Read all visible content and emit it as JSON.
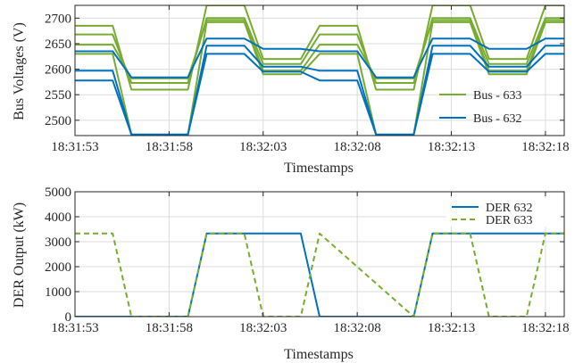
{
  "colors": {
    "green": "#77AC30",
    "blue": "#0072BD",
    "grid": "#dcdcdc",
    "axis": "#262626",
    "background": "#ffffff"
  },
  "chart_data": [
    {
      "type": "line",
      "xlabel": "Timestamps",
      "ylabel": "Bus Voltages (V)",
      "x_ticks": [
        "18:31:53",
        "18:31:58",
        "18:32:03",
        "18:32:08",
        "18:32:13",
        "18:32:18"
      ],
      "xlim": [
        "18:31:53",
        "18:32:19"
      ],
      "yticks": [
        2500,
        2550,
        2600,
        2650,
        2700
      ],
      "ylim": [
        2470,
        2725
      ],
      "grid": true,
      "legend_position": "bottom-right",
      "legend": [
        {
          "label": "Bus - 633",
          "color": "#77AC30"
        },
        {
          "label": "Bus - 632",
          "color": "#0072BD"
        }
      ],
      "series": [
        {
          "name": "Bus - 633",
          "color": "#77AC30",
          "x": [
            "18:31:53",
            "18:31:55",
            "18:31:56",
            "18:31:59",
            "18:32:00",
            "18:32:02",
            "18:32:03",
            "18:32:05",
            "18:32:06",
            "18:32:08",
            "18:32:09",
            "18:32:11",
            "18:32:12",
            "18:32:14",
            "18:32:15",
            "18:32:17",
            "18:32:18",
            "18:32:19"
          ],
          "values": [
            2685,
            2685,
            2560,
            2560,
            2725,
            2725,
            2620,
            2620,
            2685,
            2685,
            2560,
            2560,
            2725,
            2725,
            2620,
            2620,
            2725,
            2725
          ]
        },
        {
          "name": "Bus - 633",
          "color": "#77AC30",
          "x": [
            "18:31:53",
            "18:31:55",
            "18:31:56",
            "18:31:59",
            "18:32:00",
            "18:32:02",
            "18:32:03",
            "18:32:05",
            "18:32:06",
            "18:32:08",
            "18:32:09",
            "18:32:11",
            "18:32:12",
            "18:32:14",
            "18:32:15",
            "18:32:17",
            "18:32:18",
            "18:32:19"
          ],
          "values": [
            2668,
            2668,
            2573,
            2573,
            2700,
            2700,
            2610,
            2610,
            2668,
            2668,
            2573,
            2573,
            2700,
            2700,
            2610,
            2610,
            2700,
            2700
          ]
        },
        {
          "name": "Bus - 633",
          "color": "#77AC30",
          "x": [
            "18:31:53",
            "18:31:55",
            "18:31:56",
            "18:31:59",
            "18:32:00",
            "18:32:02",
            "18:32:03",
            "18:32:05",
            "18:32:06",
            "18:32:08",
            "18:32:09",
            "18:32:11",
            "18:32:12",
            "18:32:14",
            "18:32:15",
            "18:32:17",
            "18:32:18",
            "18:32:19"
          ],
          "values": [
            2648,
            2648,
            2582,
            2582,
            2696,
            2696,
            2597,
            2597,
            2648,
            2648,
            2582,
            2582,
            2696,
            2696,
            2597,
            2597,
            2696,
            2696
          ]
        },
        {
          "name": "Bus - 633",
          "color": "#77AC30",
          "x": [
            "18:31:53",
            "18:31:55",
            "18:31:56",
            "18:31:59",
            "18:32:00",
            "18:32:02",
            "18:32:03",
            "18:32:05",
            "18:32:06",
            "18:32:08",
            "18:32:09",
            "18:32:11",
            "18:32:12",
            "18:32:14",
            "18:32:15",
            "18:32:17",
            "18:32:18",
            "18:32:19"
          ],
          "values": [
            2630,
            2630,
            2472,
            2472,
            2692,
            2692,
            2590,
            2590,
            2630,
            2630,
            2472,
            2472,
            2692,
            2692,
            2590,
            2590,
            2692,
            2692
          ]
        },
        {
          "name": "Bus - 632",
          "color": "#0072BD",
          "x": [
            "18:31:53",
            "18:31:55",
            "18:31:56",
            "18:31:59",
            "18:32:00",
            "18:32:02",
            "18:32:03",
            "18:32:05",
            "18:32:06",
            "18:32:08",
            "18:32:09",
            "18:32:11",
            "18:32:12",
            "18:32:14",
            "18:32:15",
            "18:32:17",
            "18:32:18",
            "18:32:19"
          ],
          "values": [
            2635,
            2635,
            2584,
            2584,
            2660,
            2660,
            2640,
            2640,
            2635,
            2635,
            2584,
            2584,
            2660,
            2660,
            2640,
            2640,
            2660,
            2660
          ]
        },
        {
          "name": "Bus - 632",
          "color": "#0072BD",
          "x": [
            "18:31:53",
            "18:31:55",
            "18:31:56",
            "18:31:59",
            "18:32:00",
            "18:32:02",
            "18:32:03",
            "18:32:05",
            "18:32:06",
            "18:32:08",
            "18:32:09",
            "18:32:11",
            "18:32:12",
            "18:32:14",
            "18:32:15",
            "18:32:17",
            "18:32:18",
            "18:32:19"
          ],
          "values": [
            2597,
            2597,
            2472,
            2472,
            2646,
            2646,
            2605,
            2605,
            2597,
            2597,
            2472,
            2472,
            2646,
            2646,
            2605,
            2605,
            2646,
            2646
          ]
        },
        {
          "name": "Bus - 632",
          "color": "#0072BD",
          "x": [
            "18:31:53",
            "18:31:55",
            "18:31:56",
            "18:31:59",
            "18:32:00",
            "18:32:02",
            "18:32:03",
            "18:32:05",
            "18:32:06",
            "18:32:08",
            "18:32:09",
            "18:32:11",
            "18:32:12",
            "18:32:14",
            "18:32:15",
            "18:32:17",
            "18:32:18",
            "18:32:19"
          ],
          "values": [
            2578,
            2578,
            2472,
            2472,
            2630,
            2630,
            2595,
            2595,
            2578,
            2578,
            2472,
            2472,
            2630,
            2630,
            2595,
            2595,
            2630,
            2630
          ]
        }
      ]
    },
    {
      "type": "line",
      "xlabel": "Timestamps",
      "ylabel": "DER Output (kW)",
      "x_ticks": [
        "18:31:53",
        "18:31:58",
        "18:32:03",
        "18:32:08",
        "18:32:13",
        "18:32:18"
      ],
      "xlim": [
        "18:31:53",
        "18:32:19"
      ],
      "yticks": [
        0,
        1000,
        2000,
        3000,
        4000,
        5000
      ],
      "ylim": [
        0,
        5000
      ],
      "grid": true,
      "legend_position": "top-right",
      "legend": [
        {
          "label": "DER 632",
          "color": "#0072BD",
          "style": "solid"
        },
        {
          "label": "DER 633",
          "color": "#77AC30",
          "style": "dashed"
        }
      ],
      "series": [
        {
          "name": "DER 632",
          "color": "#0072BD",
          "style": "solid",
          "x": [
            "18:31:53",
            "18:31:58",
            "18:31:59",
            "18:32:00",
            "18:32:05",
            "18:32:06",
            "18:32:11",
            "18:32:12",
            "18:32:19"
          ],
          "values": [
            0,
            0,
            0,
            3330,
            3330,
            0,
            0,
            3330,
            3330
          ]
        },
        {
          "name": "DER 633",
          "color": "#77AC30",
          "style": "dashed",
          "x": [
            "18:31:53",
            "18:31:55",
            "18:31:56",
            "18:31:59",
            "18:32:00",
            "18:32:02",
            "18:32:03",
            "18:32:05",
            "18:32:06",
            "18:32:11",
            "18:32:12",
            "18:32:14",
            "18:32:15",
            "18:32:17",
            "18:32:18",
            "18:32:19"
          ],
          "values": [
            3330,
            3330,
            0,
            0,
            3330,
            3330,
            0,
            0,
            3330,
            0,
            3330,
            3330,
            0,
            0,
            3330,
            3330
          ]
        }
      ]
    }
  ]
}
